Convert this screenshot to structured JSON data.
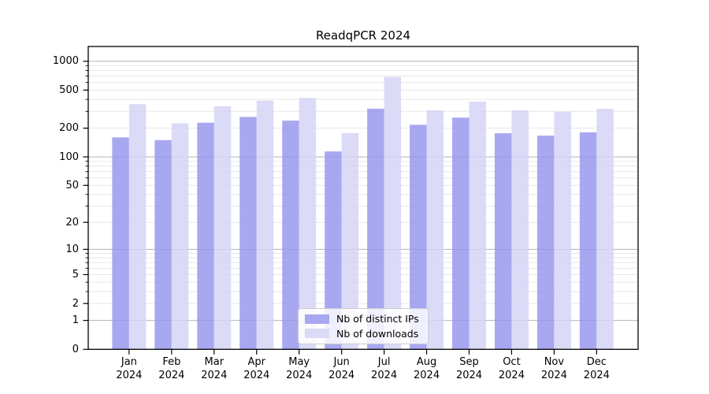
{
  "figure": {
    "title": "ReadqPCR 2024"
  },
  "chart_data": {
    "type": "bar",
    "title": "ReadqPCR 2024",
    "x": [
      "Jan",
      "Feb",
      "Mar",
      "Apr",
      "May",
      "Jun",
      "Jul",
      "Aug",
      "Sep",
      "Oct",
      "Nov",
      "Dec"
    ],
    "x_year": "2024",
    "categories": [
      "Jan 2024",
      "Feb 2024",
      "Mar 2024",
      "Apr 2024",
      "May 2024",
      "Jun 2024",
      "Jul 2024",
      "Aug 2024",
      "Sep 2024",
      "Oct 2024",
      "Nov 2024",
      "Dec 2024"
    ],
    "series": [
      {
        "name": "Nb of distinct IPs",
        "color": "#9595ee",
        "values": [
          160,
          150,
          228,
          262,
          240,
          114,
          320,
          217,
          258,
          177,
          167,
          181
        ]
      },
      {
        "name": "Nb of downloads",
        "color": "#d3d3f6",
        "values": [
          357,
          225,
          340,
          388,
          414,
          178,
          685,
          307,
          379,
          308,
          297,
          319
        ]
      }
    ],
    "yscale": "log10(1+v)",
    "ylim": [
      0,
      1425
    ],
    "yticks": [
      0,
      1,
      2,
      5,
      10,
      20,
      50,
      100,
      200,
      500,
      1000
    ],
    "grid": {
      "major_values": [
        1,
        10,
        100,
        1000
      ],
      "minor_values": [
        2,
        5,
        20,
        50,
        200,
        500,
        3,
        4,
        6,
        7,
        8,
        9,
        30,
        40,
        60,
        70,
        80,
        90,
        300,
        400,
        600,
        700,
        800,
        900
      ],
      "major_color": "#b3b3b3",
      "minor_color": "#e7e7e7"
    },
    "bar_opacity": 0.82,
    "legend_position": "lower center"
  }
}
